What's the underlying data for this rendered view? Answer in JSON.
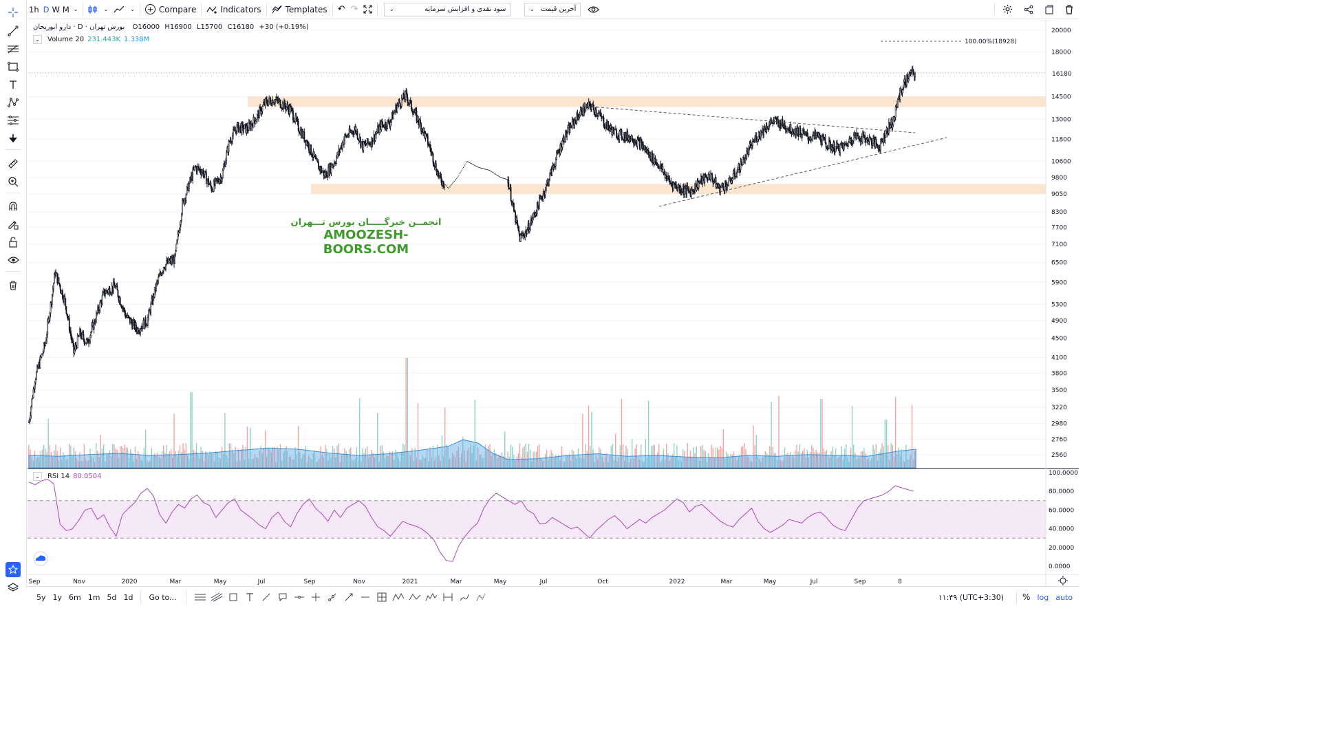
{
  "topbar": {
    "intervals": [
      "1h",
      "D",
      "W",
      "M"
    ],
    "active_interval": "D",
    "compare_label": "Compare",
    "indicators_label": "Indicators",
    "templates_label": "Templates",
    "dropdown1": "سود نقدی و افزایش سرمایه",
    "dropdown2": "آخرین قیمت"
  },
  "legend": {
    "symbol": "دارو ابوریحان",
    "separator": "·",
    "interval": "D",
    "exchange": "بورس تهران",
    "open": "O16000",
    "high": "H16900",
    "low": "L15700",
    "close": "C16180",
    "change": "+30 (+0.19%)"
  },
  "volume_legend": {
    "name": "Volume 20",
    "value1": "231.443K",
    "value2": "1.338M"
  },
  "rsi_legend": {
    "name": "RSI 14",
    "value": "80.0504"
  },
  "watermark": {
    "fa": "انجمــن خبرگـــــان بورس تـــهران",
    "en": "AMOOZESH-BOORS.COM"
  },
  "price_axis": [
    "20000",
    "18000",
    "14500",
    "13000",
    "11800",
    "10600",
    "9800",
    "9050",
    "8300",
    "7700",
    "7100",
    "6500",
    "5900",
    "5300",
    "4900",
    "4500",
    "4100",
    "3800",
    "3500",
    "3220",
    "2980",
    "2760",
    "2560"
  ],
  "current_price": "16180",
  "target_label": "100.00%(18928)",
  "rsi_axis": [
    "100.0000",
    "80.0000",
    "60.0000",
    "40.0000",
    "20.0000",
    "0.0000"
  ],
  "time_axis": [
    "Sep",
    "Nov",
    "2020",
    "Mar",
    "May",
    "Jul",
    "Sep",
    "Nov",
    "2021",
    "Mar",
    "May",
    "Jul",
    "Oct",
    "2022",
    "Mar",
    "May",
    "Jul",
    "Sep",
    "8"
  ],
  "bottombar": {
    "ranges": [
      "5y",
      "1y",
      "6m",
      "1m",
      "5d",
      "1d"
    ],
    "goto_label": "Go to...",
    "clock": "۱۱:۴۹ (UTC+3:30)",
    "percent": "%",
    "log": "log",
    "auto": "auto"
  },
  "colors": {
    "up": "#26a69a",
    "down": "#ef5350",
    "accent": "#2962ff",
    "rsi": "#ab47bc",
    "zone": "#fce0c8",
    "watermark": "#3f9a2c"
  },
  "chart_data": {
    "type": "candlestick",
    "title": "",
    "ylabel": "",
    "price_y_scale": "log",
    "resistance_zone": [
      13800,
      14500
    ],
    "support_zone": [
      9050,
      9500
    ],
    "price_path": [
      [
        0,
        3000
      ],
      [
        8,
        3700
      ],
      [
        22,
        4400
      ],
      [
        35,
        6200
      ],
      [
        48,
        5400
      ],
      [
        60,
        4200
      ],
      [
        68,
        4600
      ],
      [
        78,
        4400
      ],
      [
        88,
        4900
      ],
      [
        100,
        5600
      ],
      [
        115,
        5800
      ],
      [
        130,
        5000
      ],
      [
        145,
        4700
      ],
      [
        158,
        4900
      ],
      [
        170,
        5800
      ],
      [
        180,
        6400
      ],
      [
        195,
        6600
      ],
      [
        205,
        8600
      ],
      [
        215,
        9600
      ],
      [
        222,
        10300
      ],
      [
        232,
        10100
      ],
      [
        244,
        9300
      ],
      [
        258,
        9900
      ],
      [
        268,
        11700
      ],
      [
        278,
        12500
      ],
      [
        292,
        12400
      ],
      [
        304,
        13100
      ],
      [
        316,
        14100
      ],
      [
        328,
        14300
      ],
      [
        338,
        14000
      ],
      [
        350,
        13600
      ],
      [
        360,
        12500
      ],
      [
        372,
        11600
      ],
      [
        384,
        10500
      ],
      [
        396,
        9900
      ],
      [
        410,
        10700
      ],
      [
        422,
        11900
      ],
      [
        436,
        12400
      ],
      [
        446,
        11400
      ],
      [
        458,
        11700
      ],
      [
        470,
        12600
      ],
      [
        482,
        12800
      ],
      [
        492,
        13900
      ],
      [
        504,
        14600
      ],
      [
        514,
        13500
      ],
      [
        526,
        12400
      ],
      [
        536,
        11300
      ],
      [
        548,
        9800
      ],
      [
        560,
        9300
      ],
      [
        572,
        9800
      ],
      [
        585,
        10600
      ],
      [
        600,
        10300
      ],
      [
        615,
        10150
      ],
      [
        630,
        9800
      ],
      [
        640,
        9700
      ],
      [
        648,
        8300
      ],
      [
        656,
        7300
      ],
      [
        666,
        7600
      ],
      [
        678,
        8400
      ],
      [
        690,
        9300
      ],
      [
        702,
        10500
      ],
      [
        714,
        11800
      ],
      [
        726,
        12700
      ],
      [
        738,
        13500
      ],
      [
        750,
        13900
      ],
      [
        760,
        13400
      ],
      [
        770,
        12700
      ],
      [
        782,
        12200
      ],
      [
        794,
        12000
      ],
      [
        806,
        11900
      ],
      [
        818,
        11500
      ],
      [
        830,
        10900
      ],
      [
        842,
        10400
      ],
      [
        856,
        9600
      ],
      [
        870,
        9300
      ],
      [
        884,
        9150
      ],
      [
        896,
        9600
      ],
      [
        910,
        9900
      ],
      [
        922,
        9300
      ],
      [
        934,
        9500
      ],
      [
        946,
        10100
      ],
      [
        958,
        10900
      ],
      [
        970,
        11800
      ],
      [
        982,
        12400
      ],
      [
        994,
        12900
      ],
      [
        1006,
        12700
      ],
      [
        1018,
        12400
      ],
      [
        1030,
        12200
      ],
      [
        1042,
        11900
      ],
      [
        1054,
        12000
      ],
      [
        1066,
        11500
      ],
      [
        1078,
        11300
      ],
      [
        1090,
        11400
      ],
      [
        1102,
        12000
      ],
      [
        1114,
        11900
      ],
      [
        1126,
        11700
      ],
      [
        1136,
        11400
      ],
      [
        1146,
        12300
      ],
      [
        1156,
        13000
      ],
      [
        1162,
        14500
      ],
      [
        1170,
        15500
      ],
      [
        1178,
        16200
      ],
      [
        1184,
        16180
      ]
    ],
    "volume_profile_x": [
      0,
      40,
      80,
      120,
      160,
      200,
      240,
      280,
      320,
      360,
      400,
      440,
      480,
      520,
      560,
      580,
      600,
      620,
      640,
      680,
      720,
      760,
      800,
      840,
      880,
      920,
      960,
      1000,
      1040,
      1080,
      1120,
      1160,
      1185
    ],
    "volume_profile_y": [
      0.3,
      0.28,
      0.32,
      0.35,
      0.3,
      0.32,
      0.36,
      0.42,
      0.48,
      0.45,
      0.36,
      0.3,
      0.34,
      0.42,
      0.52,
      0.68,
      0.6,
      0.35,
      0.2,
      0.22,
      0.3,
      0.34,
      0.28,
      0.3,
      0.26,
      0.24,
      0.3,
      0.28,
      0.32,
      0.3,
      0.28,
      0.4,
      0.45
    ],
    "rsi_overbought": 70,
    "rsi_oversold": 30,
    "rsi_path": [
      [
        0,
        90
      ],
      [
        10,
        87
      ],
      [
        20,
        91
      ],
      [
        30,
        93
      ],
      [
        40,
        88
      ],
      [
        50,
        45
      ],
      [
        60,
        38
      ],
      [
        70,
        40
      ],
      [
        80,
        49
      ],
      [
        90,
        60
      ],
      [
        100,
        62
      ],
      [
        110,
        50
      ],
      [
        120,
        55
      ],
      [
        130,
        42
      ],
      [
        140,
        32
      ],
      [
        150,
        55
      ],
      [
        160,
        62
      ],
      [
        170,
        68
      ],
      [
        180,
        78
      ],
      [
        190,
        83
      ],
      [
        200,
        75
      ],
      [
        210,
        55
      ],
      [
        220,
        46
      ],
      [
        230,
        58
      ],
      [
        240,
        66
      ],
      [
        250,
        62
      ],
      [
        260,
        72
      ],
      [
        270,
        76
      ],
      [
        280,
        68
      ],
      [
        290,
        65
      ],
      [
        300,
        52
      ],
      [
        310,
        60
      ],
      [
        320,
        68
      ],
      [
        330,
        72
      ],
      [
        340,
        60
      ],
      [
        350,
        55
      ],
      [
        360,
        50
      ],
      [
        370,
        44
      ],
      [
        380,
        40
      ],
      [
        390,
        52
      ],
      [
        400,
        58
      ],
      [
        410,
        48
      ],
      [
        420,
        42
      ],
      [
        430,
        56
      ],
      [
        440,
        66
      ],
      [
        450,
        72
      ],
      [
        460,
        62
      ],
      [
        470,
        56
      ],
      [
        480,
        48
      ],
      [
        490,
        60
      ],
      [
        500,
        52
      ],
      [
        510,
        62
      ],
      [
        520,
        66
      ],
      [
        530,
        70
      ],
      [
        540,
        64
      ],
      [
        550,
        52
      ],
      [
        560,
        42
      ],
      [
        570,
        38
      ],
      [
        580,
        32
      ],
      [
        590,
        40
      ],
      [
        600,
        48
      ],
      [
        610,
        45
      ],
      [
        620,
        43
      ],
      [
        630,
        40
      ],
      [
        640,
        35
      ],
      [
        650,
        28
      ],
      [
        660,
        15
      ],
      [
        670,
        6
      ],
      [
        680,
        5
      ],
      [
        690,
        22
      ],
      [
        700,
        32
      ],
      [
        710,
        40
      ],
      [
        720,
        46
      ],
      [
        730,
        62
      ],
      [
        740,
        72
      ],
      [
        750,
        78
      ],
      [
        760,
        74
      ],
      [
        770,
        70
      ],
      [
        780,
        66
      ],
      [
        790,
        70
      ],
      [
        800,
        60
      ],
      [
        810,
        56
      ],
      [
        820,
        45
      ],
      [
        830,
        46
      ],
      [
        840,
        52
      ],
      [
        850,
        48
      ],
      [
        860,
        44
      ],
      [
        870,
        40
      ],
      [
        880,
        42
      ],
      [
        890,
        36
      ],
      [
        900,
        30
      ],
      [
        910,
        38
      ],
      [
        920,
        44
      ],
      [
        930,
        50
      ],
      [
        940,
        54
      ],
      [
        950,
        48
      ],
      [
        960,
        40
      ],
      [
        970,
        45
      ],
      [
        980,
        50
      ],
      [
        990,
        46
      ],
      [
        1000,
        52
      ],
      [
        1010,
        56
      ],
      [
        1020,
        60
      ],
      [
        1030,
        66
      ],
      [
        1040,
        72
      ],
      [
        1050,
        68
      ],
      [
        1060,
        58
      ],
      [
        1070,
        64
      ],
      [
        1080,
        66
      ],
      [
        1090,
        60
      ],
      [
        1100,
        54
      ],
      [
        1110,
        48
      ],
      [
        1120,
        44
      ],
      [
        1130,
        42
      ],
      [
        1140,
        50
      ],
      [
        1150,
        56
      ],
      [
        1160,
        62
      ],
      [
        1170,
        48
      ],
      [
        1180,
        40
      ],
      [
        1190,
        36
      ],
      [
        1200,
        40
      ],
      [
        1210,
        44
      ],
      [
        1220,
        50
      ],
      [
        1230,
        48
      ],
      [
        1240,
        46
      ],
      [
        1250,
        52
      ],
      [
        1260,
        56
      ],
      [
        1270,
        58
      ],
      [
        1280,
        52
      ],
      [
        1290,
        44
      ],
      [
        1300,
        40
      ],
      [
        1310,
        38
      ],
      [
        1320,
        50
      ],
      [
        1330,
        62
      ],
      [
        1340,
        70
      ],
      [
        1350,
        72
      ],
      [
        1360,
        74
      ],
      [
        1370,
        76
      ],
      [
        1380,
        80
      ],
      [
        1390,
        86
      ],
      [
        1400,
        84
      ],
      [
        1410,
        82
      ],
      [
        1420,
        80
      ]
    ]
  }
}
